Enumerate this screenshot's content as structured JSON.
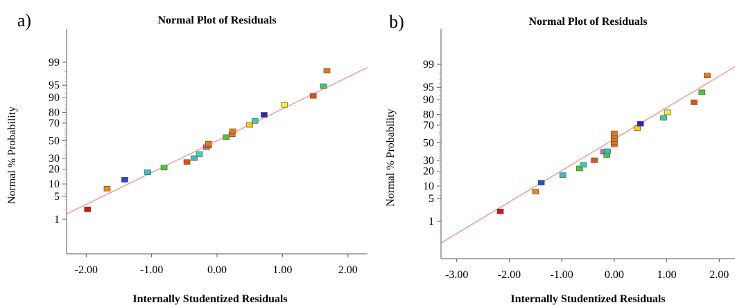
{
  "chart_data": [
    {
      "panel": "a)",
      "type": "scatter",
      "title": "Normal Plot of Residuals",
      "xlabel": "Internally Studentized Residuals",
      "ylabel": "Normal % Probability",
      "xlim": [
        -2.3,
        2.3
      ],
      "xticks": [
        "-2.00",
        "-1.00",
        "0.00",
        "1.00",
        "2.00"
      ],
      "yscale": "normal-probability",
      "yticks": [
        1,
        5,
        10,
        20,
        30,
        50,
        70,
        80,
        90,
        95,
        99
      ],
      "ytick_labels": [
        "1",
        "5",
        "10",
        "20",
        "30",
        "50",
        "70",
        "80",
        "90",
        "95",
        "99"
      ],
      "grid": false,
      "reference_line": {
        "color": "#ef8f8f",
        "x": [
          -2.3,
          2.3
        ],
        "y": [
          1.5,
          98.5
        ]
      },
      "points": [
        {
          "x": -1.98,
          "y": 2.1,
          "color": "#cc1a1a"
        },
        {
          "x": -1.68,
          "y": 7.8,
          "color": "#e88a1e"
        },
        {
          "x": -1.41,
          "y": 12.4,
          "color": "#1a4fd6"
        },
        {
          "x": -1.06,
          "y": 17.5,
          "color": "#28c6d4"
        },
        {
          "x": -0.81,
          "y": 21.3,
          "color": "#3fcc3f"
        },
        {
          "x": -0.46,
          "y": 26.4,
          "color": "#d9531e"
        },
        {
          "x": -0.35,
          "y": 30.3,
          "color": "#28c6c0"
        },
        {
          "x": -0.27,
          "y": 34.5,
          "color": "#3fd1c6"
        },
        {
          "x": -0.16,
          "y": 42.5,
          "color": "#b86ec9"
        },
        {
          "x": -0.13,
          "y": 44.6,
          "color": "#e07a24"
        },
        {
          "x": -0.13,
          "y": 46.6,
          "color": "#e07a24"
        },
        {
          "x": 0.14,
          "y": 54.2,
          "color": "#3fcc3f"
        },
        {
          "x": 0.23,
          "y": 57.6,
          "color": "#e07a24"
        },
        {
          "x": 0.24,
          "y": 61.2,
          "color": "#e07a24"
        },
        {
          "x": 0.5,
          "y": 68.1,
          "color": "#f0d21e"
        },
        {
          "x": 0.58,
          "y": 72.2,
          "color": "#2fd1b4"
        },
        {
          "x": 0.72,
          "y": 77.9,
          "color": "#2424d6"
        },
        {
          "x": 1.03,
          "y": 85.6,
          "color": "#f2ee3a"
        },
        {
          "x": 1.47,
          "y": 90.8,
          "color": "#d9531e"
        },
        {
          "x": 1.63,
          "y": 94.7,
          "color": "#3fcc7a"
        },
        {
          "x": 1.68,
          "y": 98.1,
          "color": "#e07a24"
        }
      ]
    },
    {
      "panel": "b)",
      "type": "scatter",
      "title": "Normal Plot of Residuals",
      "xlabel": "Internally Studentized Residuals",
      "ylabel": "Normal % Probability",
      "xlim": [
        -3.3,
        2.3
      ],
      "xticks": [
        "-3.00",
        "-2.00",
        "-1.00",
        "0.00",
        "1.00",
        "2.00"
      ],
      "yscale": "normal-probability",
      "yticks": [
        1,
        5,
        10,
        20,
        30,
        50,
        70,
        80,
        90,
        95,
        99
      ],
      "ytick_labels": [
        "1",
        "5",
        "10",
        "20",
        "30",
        "50",
        "70",
        "80",
        "90",
        "95",
        "99"
      ],
      "grid": false,
      "reference_line": {
        "color": "#ef8f8f",
        "x": [
          -3.3,
          2.3
        ],
        "y": [
          0.15,
          98.8
        ]
      },
      "points": [
        {
          "x": -2.17,
          "y": 2.1,
          "color": "#cc1a1a"
        },
        {
          "x": -1.5,
          "y": 7.4,
          "color": "#e88a1e"
        },
        {
          "x": -1.39,
          "y": 11.9,
          "color": "#1a4fd6"
        },
        {
          "x": -0.98,
          "y": 16.9,
          "color": "#28c6d4"
        },
        {
          "x": -0.66,
          "y": 22.4,
          "color": "#3fcc3f"
        },
        {
          "x": -0.59,
          "y": 25.7,
          "color": "#2fd1b4"
        },
        {
          "x": -0.38,
          "y": 30.3,
          "color": "#d9531e"
        },
        {
          "x": -0.2,
          "y": 39.6,
          "color": "#b86ec9"
        },
        {
          "x": -0.14,
          "y": 35.9,
          "color": "#3fcc3f"
        },
        {
          "x": -0.13,
          "y": 40.2,
          "color": "#28c6c0"
        },
        {
          "x": 0.0,
          "y": 48.0,
          "color": "#e07a24"
        },
        {
          "x": 0.0,
          "y": 51.2,
          "color": "#e07a24"
        },
        {
          "x": 0.0,
          "y": 54.5,
          "color": "#e07a24"
        },
        {
          "x": 0.0,
          "y": 57.7,
          "color": "#e07a24"
        },
        {
          "x": 0.0,
          "y": 61.1,
          "color": "#e07a24"
        },
        {
          "x": 0.44,
          "y": 66.9,
          "color": "#f0d21e"
        },
        {
          "x": 0.5,
          "y": 71.4,
          "color": "#2424d6"
        },
        {
          "x": 0.94,
          "y": 77.0,
          "color": "#3fcc9c"
        },
        {
          "x": 1.02,
          "y": 81.7,
          "color": "#f2ee3a"
        },
        {
          "x": 1.52,
          "y": 88.5,
          "color": "#d9531e"
        },
        {
          "x": 1.67,
          "y": 93.3,
          "color": "#3fcc3f"
        },
        {
          "x": 1.77,
          "y": 97.7,
          "color": "#e07a24"
        }
      ]
    }
  ]
}
